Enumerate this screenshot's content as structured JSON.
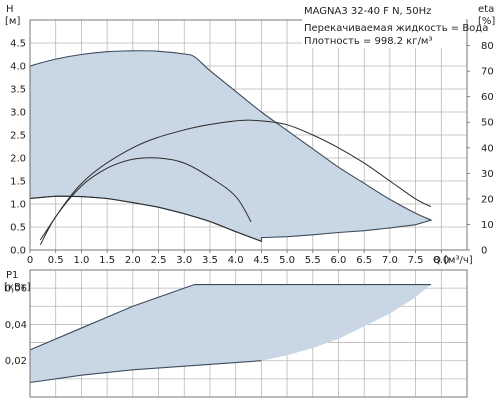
{
  "chart_data": [
    {
      "type": "line",
      "title": "MAGNA3 32-40 F N, 50Hz",
      "annotations": [
        "Перекачиваемая жидкость = Вода",
        "Плотность = 998.2 кг/м³"
      ],
      "ylabel_name": "H",
      "ylabel_unit": "[м]",
      "xlabel_name": "Q",
      "xlabel_unit": "[м³/ч]",
      "y2label_name": "eta",
      "y2label_unit": "[%]",
      "xlim": [
        0,
        8.5
      ],
      "ylim": [
        0,
        5
      ],
      "y2lim": [
        0,
        90
      ],
      "xticks": [
        "0",
        "0.5",
        "1.0",
        "1.5",
        "2.0",
        "2.5",
        "3.0",
        "3.5",
        "4.0",
        "4.5",
        "5.0",
        "5.5",
        "6.0",
        "6.5",
        "7.0",
        "7.5",
        "8.0"
      ],
      "yticks": [
        "0.0",
        "0.5",
        "1.0",
        "1.5",
        "2.0",
        "2.5",
        "3.0",
        "3.5",
        "4.0",
        "4.5"
      ],
      "y2ticks": [
        "0",
        "10",
        "20",
        "30",
        "40",
        "50",
        "60",
        "70",
        "80"
      ],
      "grid": true,
      "operating_range": {
        "upper_x": [
          0,
          0.5,
          1.0,
          1.5,
          2.0,
          2.5,
          3.0,
          3.2,
          3.5,
          4.0,
          4.5,
          5.0,
          5.5,
          6.0,
          6.5,
          7.0,
          7.5,
          7.8
        ],
        "upper_y": [
          4.0,
          4.15,
          4.25,
          4.31,
          4.33,
          4.32,
          4.26,
          4.2,
          3.9,
          3.45,
          3.0,
          2.6,
          2.2,
          1.8,
          1.45,
          1.1,
          0.8,
          0.65
        ],
        "lower_x": [
          7.8,
          7.5,
          7.0,
          6.5,
          6.0,
          5.5,
          5.0,
          4.5,
          4.5,
          4.0,
          3.5,
          3.0,
          2.5,
          2.0,
          1.5,
          1.0,
          0.5,
          0
        ],
        "lower_y": [
          0.65,
          0.55,
          0.48,
          0.42,
          0.38,
          0.33,
          0.29,
          0.27,
          0.19,
          0.4,
          0.62,
          0.79,
          0.93,
          1.03,
          1.12,
          1.16,
          1.17,
          1.12
        ]
      },
      "series": [
        {
          "axis": "H",
          "x": [
            0,
            0.5,
            1.0,
            1.5,
            2.0,
            2.5,
            3.0,
            3.5,
            4.0,
            4.5
          ],
          "y": [
            1.12,
            1.17,
            1.16,
            1.12,
            1.03,
            0.93,
            0.79,
            0.62,
            0.4,
            0.19
          ]
        },
        {
          "axis": "eta",
          "x": [
            0.2,
            0.5,
            1.0,
            1.5,
            2.0,
            2.5,
            3.0,
            3.5,
            4.0,
            4.3
          ],
          "y": [
            2,
            13,
            25,
            32,
            35.5,
            36,
            34,
            28.5,
            21,
            11
          ]
        },
        {
          "axis": "eta",
          "x": [
            0.2,
            1.0,
            2.0,
            3.0,
            4.0,
            4.5,
            5.0,
            5.5,
            6.0,
            6.5,
            7.0,
            7.5,
            7.8
          ],
          "y": [
            4,
            26,
            40,
            47,
            50.5,
            50.5,
            49,
            45,
            40,
            34,
            27,
            20,
            17
          ]
        }
      ]
    },
    {
      "type": "area",
      "ylabel_name": "P1",
      "ylabel_unit": "[кВт]",
      "xlim": [
        0,
        8.5
      ],
      "ylim": [
        0,
        0.07
      ],
      "yticks": [
        "0,02",
        "0,04",
        "0,06"
      ],
      "grid": true,
      "band": {
        "upper_x": [
          0,
          1.0,
          2.0,
          3.0,
          3.2,
          7.8
        ],
        "upper_y": [
          0.026,
          0.038,
          0.05,
          0.06,
          0.062,
          0.062
        ],
        "lower_x": [
          0,
          1.0,
          2.0,
          3.0,
          4.0,
          4.5,
          5.0,
          5.5,
          6.0,
          6.5,
          7.0,
          7.5,
          7.8
        ],
        "lower_y": [
          0.008,
          0.012,
          0.015,
          0.017,
          0.019,
          0.02,
          0.023,
          0.027,
          0.032,
          0.039,
          0.046,
          0.055,
          0.062
        ]
      }
    }
  ]
}
